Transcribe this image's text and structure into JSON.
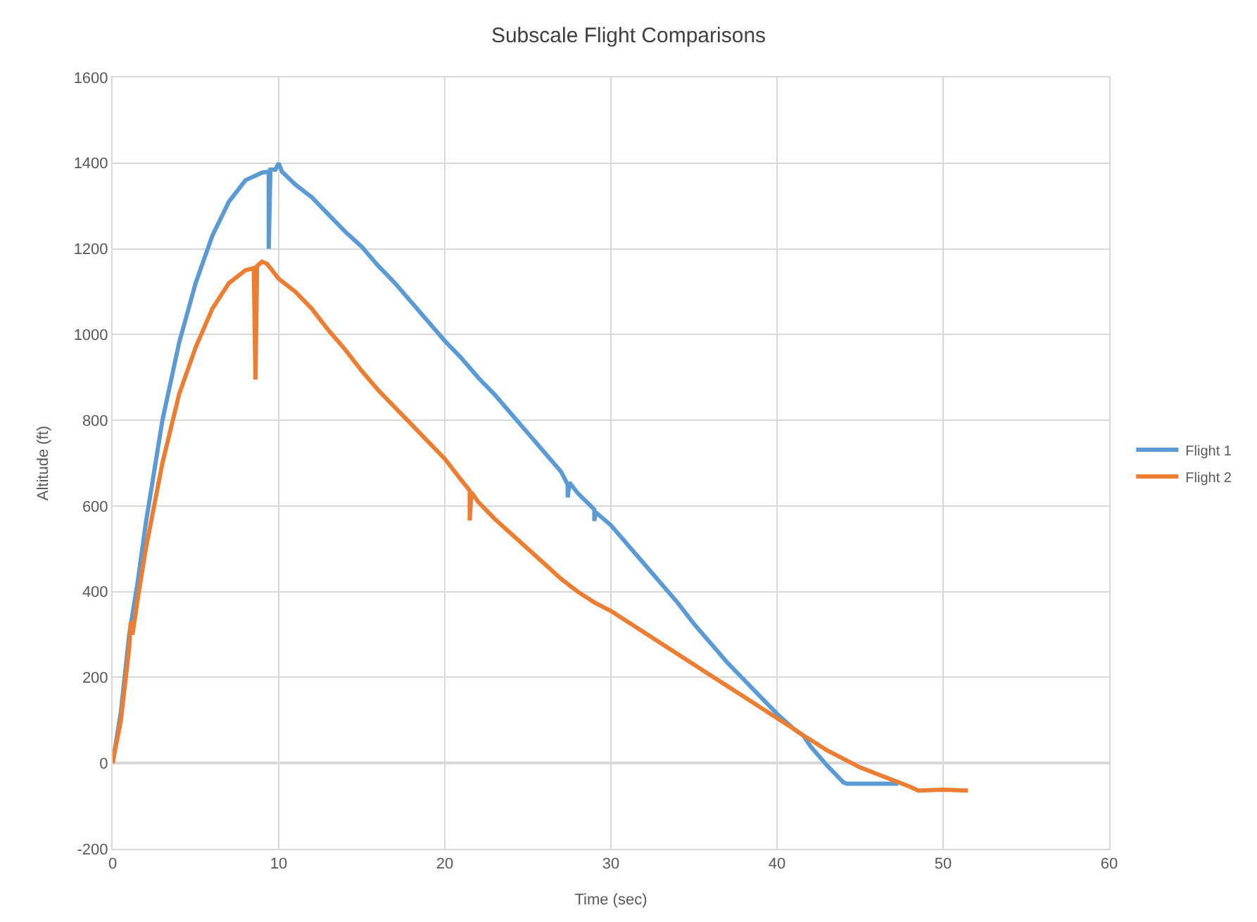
{
  "chart_data": {
    "type": "line",
    "title": "Subscale Flight Comparisons",
    "xlabel": "Time (sec)",
    "ylabel": "Altitude (ft)",
    "xlim": [
      0,
      60
    ],
    "xticks": [
      0,
      10,
      20,
      30,
      40,
      50,
      60
    ],
    "ylim": [
      -200,
      1600
    ],
    "yticks": [
      -200,
      0,
      200,
      400,
      600,
      800,
      1000,
      1200,
      1400,
      1600
    ],
    "grid": true,
    "legend": "right",
    "marker": "none",
    "line_style": "solid",
    "series": [
      {
        "name": "Flight 1",
        "color": "#5b9bd5",
        "x": [
          0,
          0.5,
          1,
          1.5,
          2,
          3,
          4,
          5,
          6,
          7,
          8,
          9,
          9.4,
          9.4,
          9.5,
          9.8,
          10,
          10.2,
          11,
          12,
          13,
          14,
          15,
          16,
          17,
          18,
          19,
          20,
          21,
          22,
          23,
          24,
          25,
          26,
          27,
          27.4,
          27.4,
          27.5,
          28,
          29,
          29,
          29.1,
          30,
          31,
          32,
          33,
          34,
          35,
          36,
          37,
          38,
          39,
          40,
          41,
          41.6,
          42,
          43,
          44,
          44.2,
          47.3
        ],
        "values": [
          0,
          120,
          300,
          420,
          560,
          800,
          980,
          1120,
          1230,
          1310,
          1360,
          1378,
          1380,
          1200,
          1385,
          1385,
          1400,
          1380,
          1350,
          1320,
          1280,
          1240,
          1205,
          1160,
          1120,
          1075,
          1030,
          985,
          945,
          900,
          860,
          815,
          770,
          725,
          680,
          650,
          620,
          655,
          630,
          592,
          565,
          585,
          555,
          510,
          465,
          420,
          375,
          325,
          280,
          235,
          195,
          155,
          115,
          80,
          64,
          40,
          -5,
          -45,
          -48,
          -48
        ]
      },
      {
        "name": "Flight 2",
        "color": "#ed7d31",
        "x": [
          0,
          0.5,
          1,
          1.1,
          1.2,
          1.5,
          2,
          3,
          4,
          5,
          6,
          7,
          8,
          8.5,
          8.6,
          8.7,
          9,
          9.3,
          10,
          11,
          12,
          13,
          14,
          15,
          16,
          17,
          18,
          19,
          20,
          21,
          21.5,
          21.5,
          21.6,
          22,
          23,
          24,
          25,
          26,
          27,
          28,
          29,
          30,
          31,
          32,
          33,
          34,
          35,
          36,
          37,
          38,
          39,
          40,
          41,
          41.6,
          42,
          43,
          44,
          45,
          46,
          47,
          48,
          48.5,
          50,
          51.5
        ],
        "values": [
          0,
          100,
          270,
          330,
          300,
          380,
          500,
          700,
          860,
          970,
          1060,
          1120,
          1150,
          1155,
          895,
          1160,
          1170,
          1165,
          1130,
          1100,
          1060,
          1010,
          965,
          915,
          870,
          830,
          790,
          750,
          710,
          660,
          636,
          566,
          632,
          610,
          570,
          535,
          500,
          465,
          430,
          400,
          375,
          355,
          330,
          305,
          280,
          255,
          230,
          205,
          180,
          155,
          130,
          105,
          80,
          64,
          55,
          30,
          10,
          -10,
          -25,
          -40,
          -55,
          -64,
          -62,
          -64
        ]
      }
    ]
  }
}
